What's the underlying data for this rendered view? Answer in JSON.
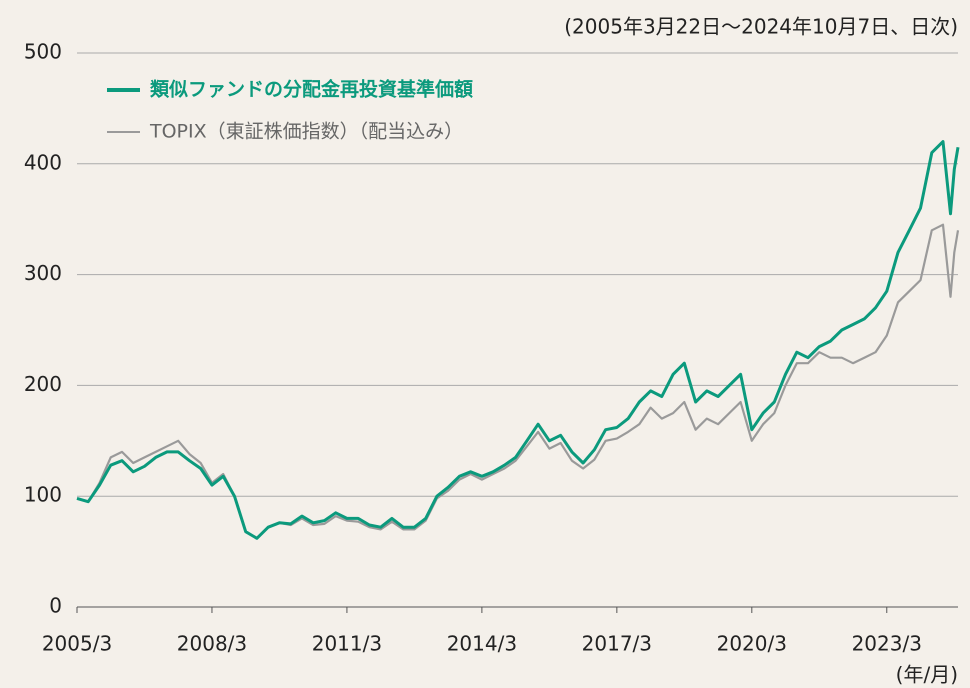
{
  "chart_data": {
    "type": "line",
    "subtitle": "(2005年3月22日～2024年10月7日、日次)",
    "x_unit": "(年/月)",
    "x": [
      "2005/3",
      "2005/6",
      "2005/9",
      "2005/12",
      "2006/3",
      "2006/6",
      "2006/9",
      "2006/12",
      "2007/3",
      "2007/6",
      "2007/9",
      "2007/12",
      "2008/3",
      "2008/6",
      "2008/9",
      "2008/12",
      "2009/3",
      "2009/6",
      "2009/9",
      "2009/12",
      "2010/3",
      "2010/6",
      "2010/9",
      "2010/12",
      "2011/3",
      "2011/6",
      "2011/9",
      "2011/12",
      "2012/3",
      "2012/6",
      "2012/9",
      "2012/12",
      "2013/3",
      "2013/6",
      "2013/9",
      "2013/12",
      "2014/3",
      "2014/6",
      "2014/9",
      "2014/12",
      "2015/3",
      "2015/6",
      "2015/9",
      "2015/12",
      "2016/3",
      "2016/6",
      "2016/9",
      "2016/12",
      "2017/3",
      "2017/6",
      "2017/9",
      "2017/12",
      "2018/3",
      "2018/6",
      "2018/9",
      "2018/12",
      "2019/3",
      "2019/6",
      "2019/9",
      "2019/12",
      "2020/3",
      "2020/6",
      "2020/9",
      "2020/12",
      "2021/3",
      "2021/6",
      "2021/9",
      "2021/12",
      "2022/3",
      "2022/6",
      "2022/9",
      "2022/12",
      "2023/3",
      "2023/6",
      "2023/9",
      "2023/12",
      "2024/3",
      "2024/6",
      "2024/8",
      "2024/9",
      "2024/10"
    ],
    "series": [
      {
        "name": "類似ファンドの分配金再投資基準価額",
        "color": "#0b9a7d",
        "values": [
          98,
          95,
          110,
          128,
          132,
          122,
          127,
          135,
          140,
          140,
          132,
          125,
          110,
          118,
          100,
          68,
          62,
          72,
          76,
          75,
          82,
          76,
          78,
          85,
          80,
          80,
          74,
          72,
          80,
          72,
          72,
          80,
          100,
          108,
          118,
          122,
          118,
          122,
          128,
          135,
          150,
          165,
          150,
          155,
          140,
          130,
          142,
          160,
          162,
          170,
          185,
          195,
          190,
          210,
          220,
          185,
          195,
          190,
          200,
          210,
          160,
          175,
          185,
          210,
          230,
          225,
          235,
          240,
          250,
          255,
          260,
          270,
          285,
          320,
          340,
          360,
          410,
          420,
          355,
          395,
          415
        ]
      },
      {
        "name": "TOPIX（東証株価指数）（配当込み）",
        "color": "#9a9a9a",
        "values": [
          98,
          95,
          112,
          135,
          140,
          130,
          135,
          140,
          145,
          150,
          138,
          130,
          112,
          120,
          100,
          68,
          62,
          72,
          76,
          74,
          80,
          74,
          75,
          82,
          78,
          77,
          72,
          70,
          77,
          70,
          70,
          78,
          98,
          105,
          115,
          120,
          115,
          120,
          125,
          132,
          145,
          158,
          143,
          148,
          132,
          125,
          133,
          150,
          152,
          158,
          165,
          180,
          170,
          175,
          185,
          160,
          170,
          165,
          175,
          185,
          150,
          165,
          175,
          200,
          220,
          220,
          230,
          225,
          225,
          220,
          225,
          230,
          245,
          275,
          285,
          295,
          340,
          345,
          280,
          320,
          340
        ]
      }
    ],
    "xlim": [
      "2005/3",
      "2024/10"
    ],
    "xticks": [
      "2005/3",
      "2008/3",
      "2011/3",
      "2014/3",
      "2017/3",
      "2020/3",
      "2023/3"
    ],
    "ylim": [
      0,
      500
    ],
    "yticks": [
      0,
      100,
      200,
      300,
      400,
      500
    ],
    "grid": true
  }
}
